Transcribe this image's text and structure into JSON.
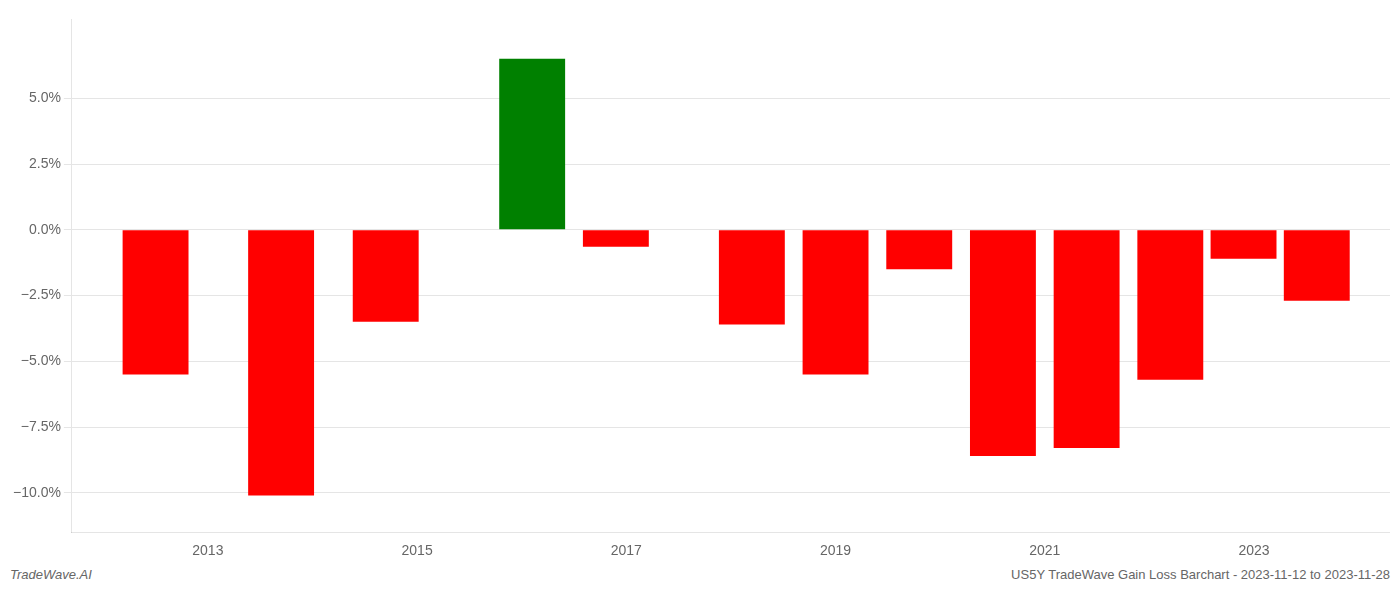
{
  "chart_data": {
    "type": "bar",
    "x": [
      2012.5,
      2013.7,
      2014.7,
      2016.1,
      2016.9,
      2018.2,
      2019.0,
      2019.8,
      2020.6,
      2021.4,
      2022.2,
      2022.9,
      2023.6
    ],
    "values": [
      -5.5,
      -10.1,
      -3.5,
      6.5,
      -0.65,
      -3.6,
      -5.5,
      -1.5,
      -8.6,
      -8.3,
      -5.7,
      -1.1,
      -2.7
    ],
    "colors": [
      "red",
      "red",
      "red",
      "green",
      "red",
      "red",
      "red",
      "red",
      "red",
      "red",
      "red",
      "red",
      "red"
    ],
    "xlim": [
      2011.7,
      2024.3
    ],
    "xticks": [
      2013,
      2015,
      2017,
      2019,
      2021,
      2023
    ],
    "ylim": [
      -11.5,
      8.0
    ],
    "yticks": [
      {
        "value": -10.0,
        "label": "−10.0%"
      },
      {
        "value": -7.5,
        "label": "−7.5%"
      },
      {
        "value": -5.0,
        "label": "−5.0%"
      },
      {
        "value": -2.5,
        "label": "−2.5%"
      },
      {
        "value": 0.0,
        "label": "0.0%"
      },
      {
        "value": 2.5,
        "label": "2.5%"
      },
      {
        "value": 5.0,
        "label": "5.0%"
      }
    ],
    "grid": true,
    "annotations": [
      "TradeWave.AI",
      "US5Y TradeWave Gain Loss Barchart - 2023-11-12 to 2023-11-28"
    ]
  }
}
